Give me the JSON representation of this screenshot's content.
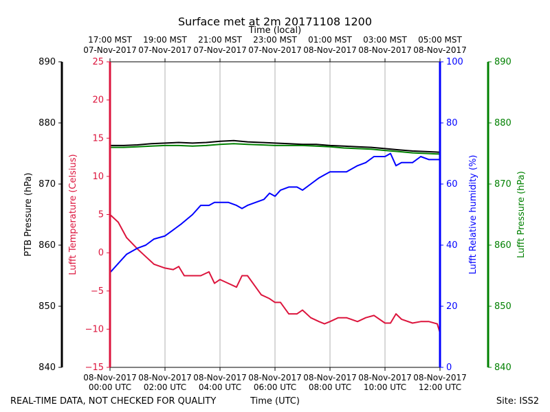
{
  "chart_data": {
    "type": "line",
    "title": "Surface met at 2m 20171108 1200",
    "top_axis_label": "Time (local)",
    "bottom_axis_label": "Time (UTC)",
    "footer_left": "REAL-TIME DATA, NOT CHECKED FOR QUALITY",
    "footer_right": "Site: ISS2",
    "x_range_hours": [
      0,
      12
    ],
    "x_ticks_utc": [
      {
        "h": 0,
        "date": "08-Nov-2017",
        "time": "00:00 UTC"
      },
      {
        "h": 2,
        "date": "08-Nov-2017",
        "time": "02:00 UTC"
      },
      {
        "h": 4,
        "date": "08-Nov-2017",
        "time": "04:00 UTC"
      },
      {
        "h": 6,
        "date": "08-Nov-2017",
        "time": "06:00 UTC"
      },
      {
        "h": 8,
        "date": "08-Nov-2017",
        "time": "08:00 UTC"
      },
      {
        "h": 10,
        "date": "08-Nov-2017",
        "time": "10:00 UTC"
      },
      {
        "h": 12,
        "date": "08-Nov-2017",
        "time": "12:00 UTC"
      }
    ],
    "x_ticks_local": [
      {
        "h": 0,
        "time": "17:00 MST",
        "date": "07-Nov-2017"
      },
      {
        "h": 2,
        "time": "19:00 MST",
        "date": "07-Nov-2017"
      },
      {
        "h": 4,
        "time": "21:00 MST",
        "date": "07-Nov-2017"
      },
      {
        "h": 6,
        "time": "23:00 MST",
        "date": "07-Nov-2017"
      },
      {
        "h": 8,
        "time": "01:00 MST",
        "date": "08-Nov-2017"
      },
      {
        "h": 10,
        "time": "03:00 MST",
        "date": "08-Nov-2017"
      },
      {
        "h": 12,
        "time": "05:00 MST",
        "date": "08-Nov-2017"
      }
    ],
    "axes": {
      "ptb_pressure": {
        "label": "PTB Pressure (hPa)",
        "range": [
          840,
          890
        ],
        "ticks": [
          "840",
          "850",
          "860",
          "870",
          "880",
          "890"
        ],
        "color": "#000000"
      },
      "temperature": {
        "label": "Lufft Temperature (Celsius)",
        "range": [
          -15,
          25
        ],
        "ticks": [
          "−15",
          "−10",
          "−5",
          "0",
          "5",
          "10",
          "15",
          "20",
          "25"
        ],
        "color": "#dc143c"
      },
      "humidity": {
        "label": "Lufft Relative humidity (%)",
        "range": [
          0,
          100
        ],
        "ticks": [
          "0",
          "20",
          "40",
          "60",
          "80",
          "100"
        ],
        "color": "#0000ff"
      },
      "lufft_pressure": {
        "label": "Lufft Pressure (hPa)",
        "range": [
          840,
          890
        ],
        "ticks": [
          "840",
          "850",
          "860",
          "870",
          "880",
          "890"
        ],
        "color": "#008000"
      }
    },
    "series": [
      {
        "name": "PTB Pressure",
        "axis": "ptb_pressure",
        "color": "#000000",
        "x": [
          0,
          0.5,
          1,
          1.5,
          2,
          2.5,
          3,
          3.5,
          4,
          4.5,
          5,
          5.5,
          6,
          6.5,
          7,
          7.5,
          8,
          8.5,
          9,
          9.5,
          10,
          10.5,
          11,
          11.5,
          12
        ],
        "y": [
          876.3,
          876.3,
          876.4,
          876.6,
          876.7,
          876.8,
          876.7,
          876.8,
          877.0,
          877.1,
          876.9,
          876.8,
          876.7,
          876.6,
          876.5,
          876.5,
          876.3,
          876.2,
          876.1,
          876.0,
          875.8,
          875.6,
          875.4,
          875.3,
          875.2
        ]
      },
      {
        "name": "Lufft Temperature",
        "axis": "temperature",
        "color": "#dc143c",
        "x": [
          0,
          0.3,
          0.6,
          1,
          1.3,
          1.6,
          2,
          2.3,
          2.5,
          2.7,
          3,
          3.3,
          3.6,
          3.8,
          4,
          4.3,
          4.6,
          4.8,
          5,
          5.3,
          5.5,
          5.8,
          6.0,
          6.2,
          6.5,
          6.8,
          7.0,
          7.3,
          7.6,
          7.8,
          8.0,
          8.3,
          8.6,
          9.0,
          9.3,
          9.6,
          10.0,
          10.2,
          10.4,
          10.6,
          11.0,
          11.3,
          11.6,
          11.9,
          12.0
        ],
        "y": [
          5.0,
          4.0,
          2.0,
          0.5,
          -0.5,
          -1.5,
          -2.0,
          -2.2,
          -1.8,
          -3.0,
          -3.0,
          -3.0,
          -2.5,
          -4.0,
          -3.5,
          -4.0,
          -4.5,
          -3.0,
          -3.0,
          -4.5,
          -5.5,
          -6.0,
          -6.5,
          -6.5,
          -8.0,
          -8.0,
          -7.5,
          -8.5,
          -9.0,
          -9.3,
          -9.0,
          -8.5,
          -8.5,
          -9.0,
          -8.5,
          -8.2,
          -9.2,
          -9.2,
          -8.0,
          -8.7,
          -9.2,
          -9.0,
          -9.0,
          -9.3,
          -10.5
        ]
      },
      {
        "name": "Lufft Relative humidity",
        "axis": "humidity",
        "color": "#0000ff",
        "x": [
          0,
          0.3,
          0.6,
          1,
          1.3,
          1.6,
          2,
          2.3,
          2.6,
          3,
          3.3,
          3.6,
          3.8,
          4,
          4.3,
          4.6,
          4.8,
          5,
          5.3,
          5.6,
          5.8,
          6.0,
          6.2,
          6.5,
          6.8,
          7.0,
          7.3,
          7.6,
          7.8,
          8.0,
          8.3,
          8.6,
          9.0,
          9.3,
          9.6,
          10.0,
          10.2,
          10.4,
          10.6,
          11.0,
          11.3,
          11.6,
          12.0
        ],
        "y": [
          31,
          34,
          37,
          39,
          40,
          42,
          43,
          45,
          47,
          50,
          53,
          53,
          54,
          54,
          54,
          53,
          52,
          53,
          54,
          55,
          57,
          56,
          58,
          59,
          59,
          58,
          60,
          62,
          63,
          64,
          64,
          64,
          66,
          67,
          69,
          69,
          70,
          66,
          67,
          67,
          69,
          68,
          68
        ]
      },
      {
        "name": "Lufft Pressure",
        "axis": "lufft_pressure",
        "color": "#008000",
        "x": [
          0,
          0.5,
          1,
          1.5,
          2,
          2.5,
          3,
          3.5,
          4,
          4.5,
          5,
          5.5,
          6,
          6.5,
          7,
          7.5,
          8,
          8.5,
          9,
          9.5,
          10,
          10.5,
          11,
          11.5,
          12
        ],
        "y": [
          876.0,
          876.0,
          876.1,
          876.2,
          876.3,
          876.3,
          876.2,
          876.3,
          876.5,
          876.6,
          876.5,
          876.4,
          876.3,
          876.3,
          876.3,
          876.2,
          876.1,
          875.9,
          875.8,
          875.7,
          875.5,
          875.3,
          875.1,
          875.0,
          874.9
        ]
      }
    ]
  }
}
